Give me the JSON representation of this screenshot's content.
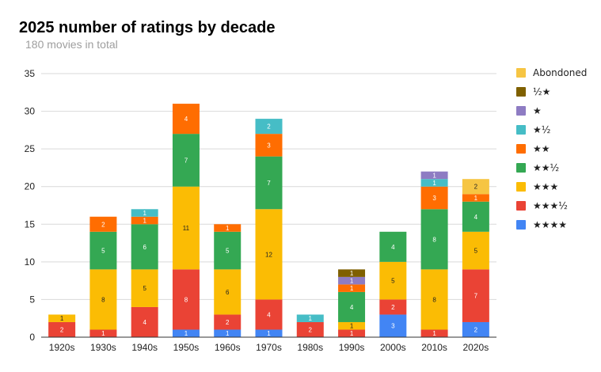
{
  "chart_data": {
    "type": "bar",
    "stacked": true,
    "title": "2025 number of ratings by decade",
    "subtitle": "180 movies in total",
    "xlabel": "",
    "ylabel": "",
    "ylim": [
      0,
      35
    ],
    "yticks": [
      "0",
      "5",
      "10",
      "15",
      "20",
      "25",
      "30",
      "35"
    ],
    "grid": true,
    "legend_position": "right",
    "categories": [
      "1920s",
      "1930s",
      "1940s",
      "1950s",
      "1960s",
      "1970s",
      "1980s",
      "1990s",
      "2000s",
      "2010s",
      "2020s"
    ],
    "series": [
      {
        "name": "★★★★",
        "color": "#4285f4",
        "values": [
          0,
          0,
          0,
          1,
          1,
          1,
          0,
          0,
          3,
          0,
          2
        ]
      },
      {
        "name": "★★★½",
        "color": "#ea4335",
        "values": [
          2,
          1,
          4,
          8,
          2,
          4,
          2,
          1,
          2,
          1,
          7
        ]
      },
      {
        "name": "★★★",
        "color": "#fbbc04",
        "values": [
          1,
          8,
          5,
          11,
          6,
          12,
          0,
          1,
          5,
          8,
          5
        ]
      },
      {
        "name": "★★½",
        "color": "#34a853",
        "values": [
          0,
          5,
          6,
          7,
          5,
          7,
          0,
          4,
          4,
          8,
          4
        ]
      },
      {
        "name": "★★",
        "color": "#ff6d01",
        "values": [
          0,
          2,
          1,
          4,
          1,
          3,
          0,
          1,
          0,
          3,
          1
        ]
      },
      {
        "name": "★½",
        "color": "#46bdc6",
        "values": [
          0,
          0,
          1,
          0,
          0,
          2,
          1,
          0,
          0,
          1,
          0
        ]
      },
      {
        "name": "★",
        "color": "#8e7cc3",
        "values": [
          0,
          0,
          0,
          0,
          0,
          0,
          0,
          1,
          0,
          1,
          0
        ]
      },
      {
        "name": "½★",
        "color": "#7f6000",
        "values": [
          0,
          0,
          0,
          0,
          0,
          0,
          0,
          1,
          0,
          0,
          0
        ]
      },
      {
        "name": "Abondoned",
        "color": "#f6c543",
        "values": [
          0,
          0,
          0,
          0,
          0,
          0,
          0,
          0,
          0,
          0,
          2
        ]
      }
    ],
    "legend_order": [
      "Abondoned",
      "½★",
      "★",
      "★½",
      "★★",
      "★★½",
      "★★★",
      "★★★½",
      "★★★★"
    ]
  }
}
